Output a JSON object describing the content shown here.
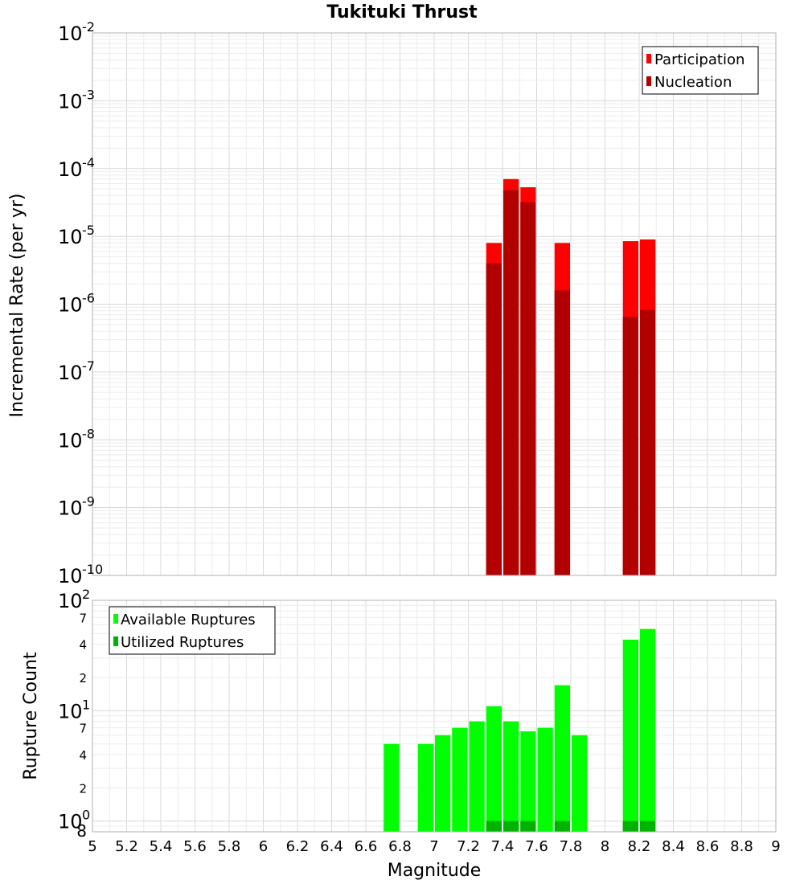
{
  "chart_data": [
    {
      "type": "bar",
      "title": "Tukituki Thrust",
      "xlabel": "",
      "ylabel": "Incremental Rate (per yr)",
      "yscale": "log",
      "xlim": [
        5,
        9
      ],
      "ylim": [
        1e-10,
        0.01
      ],
      "bin_width": 0.1,
      "x": [
        7.35,
        7.45,
        7.55,
        7.75,
        8.15,
        8.25
      ],
      "series": [
        {
          "name": "Participation",
          "color": "#ff0000",
          "values": [
            8e-06,
            7e-05,
            5.3e-05,
            8e-06,
            8.5e-06,
            9e-06
          ]
        },
        {
          "name": "Nucleation",
          "color": "#b20000",
          "values": [
            4e-06,
            4.8e-05,
            3.2e-05,
            1.6e-06,
            6.5e-07,
            8.2e-07
          ]
        }
      ],
      "legend": "top-right"
    },
    {
      "type": "bar",
      "title": "",
      "xlabel": "Magnitude",
      "ylabel": "Rupture Count",
      "yscale": "log",
      "xlim": [
        5,
        9
      ],
      "ylim": [
        0.8,
        100
      ],
      "bin_width": 0.1,
      "x": [
        6.75,
        6.95,
        7.05,
        7.15,
        7.25,
        7.35,
        7.45,
        7.55,
        7.65,
        7.75,
        7.85,
        8.15,
        8.25
      ],
      "series": [
        {
          "name": "Available Ruptures",
          "color": "#00ff00",
          "values": [
            5,
            5,
            6,
            7,
            8,
            11,
            8,
            6.5,
            7,
            17,
            6,
            44,
            55
          ]
        },
        {
          "name": "Utilized Ruptures",
          "color": "#00b200",
          "values": [
            0,
            0,
            0,
            0,
            0,
            1,
            1,
            1,
            0,
            1,
            0,
            1,
            1
          ]
        }
      ],
      "legend": "top-left"
    }
  ],
  "x_tick_labels": [
    "5",
    "5.2",
    "5.4",
    "5.6",
    "5.8",
    "6",
    "6.2",
    "6.4",
    "6.6",
    "6.8",
    "7",
    "7.2",
    "7.4",
    "7.6",
    "7.8",
    "8",
    "8.2",
    "8.4",
    "8.6",
    "8.8",
    "9"
  ],
  "top_y_ticks": [
    {
      "base": "10",
      "exp": "-10"
    },
    {
      "base": "10",
      "exp": "-9"
    },
    {
      "base": "10",
      "exp": "-8"
    },
    {
      "base": "10",
      "exp": "-7"
    },
    {
      "base": "10",
      "exp": "-6"
    },
    {
      "base": "10",
      "exp": "-5"
    },
    {
      "base": "10",
      "exp": "-4"
    },
    {
      "base": "10",
      "exp": "-3"
    },
    {
      "base": "10",
      "exp": "-2"
    }
  ],
  "bottom_y_major": [
    {
      "base": "10",
      "exp": "0"
    },
    {
      "base": "10",
      "exp": "1"
    },
    {
      "base": "10",
      "exp": "2"
    }
  ],
  "bottom_y_minor": [
    "8",
    "2",
    "4",
    "7",
    "2",
    "4",
    "7"
  ]
}
